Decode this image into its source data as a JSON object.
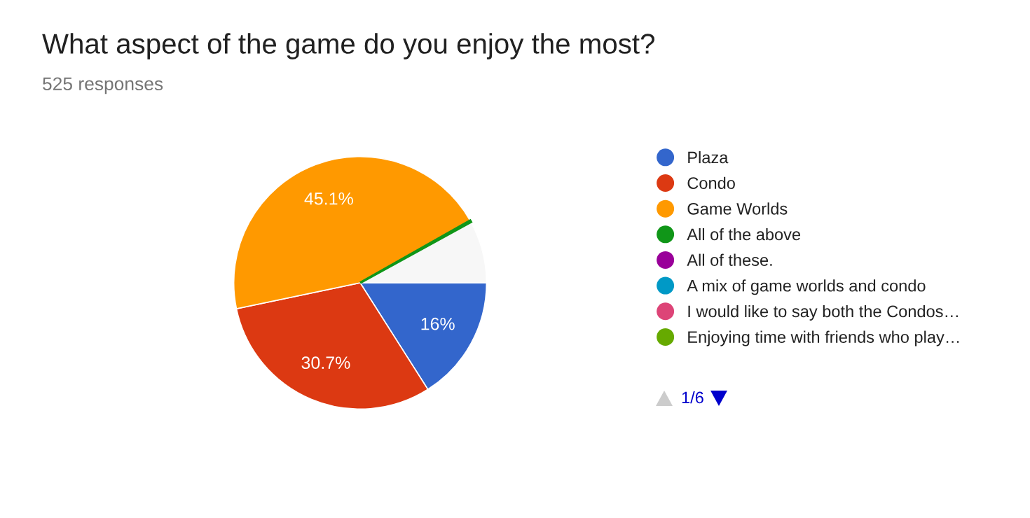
{
  "chart_data": {
    "type": "pie",
    "title": "What aspect of the game do you enjoy the most?",
    "subtitle": "525 responses",
    "categories": [
      "Plaza",
      "Condo",
      "Game Worlds",
      "All of the above",
      "All of these.",
      "A mix of game worlds and condo",
      "I would like to say both the Condos…",
      "Enjoying time with friends who play…",
      null
    ],
    "values": [
      16,
      30.7,
      45.1,
      0.19,
      null,
      null,
      null,
      null,
      8.01
    ],
    "colors": [
      "#3366cc",
      "#dc3912",
      "#ff9900",
      "#109618",
      "#990099",
      "#0099c6",
      "#dd4477",
      "#66aa00",
      "#f7f7f7"
    ],
    "value_labels": [
      "16%",
      "30.7%",
      "45.1%",
      null,
      null,
      null,
      null,
      null,
      null
    ],
    "legend": "right",
    "annotations": [
      "1/6"
    ]
  }
}
